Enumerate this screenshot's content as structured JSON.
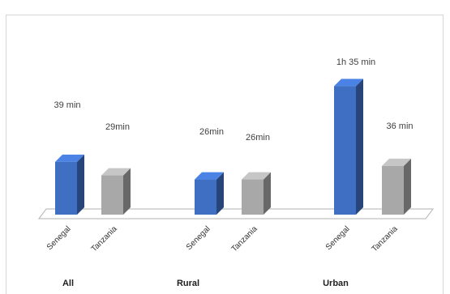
{
  "chart_data": {
    "type": "bar",
    "title": "",
    "xlabel": "",
    "ylabel": "",
    "groups": [
      {
        "name": "All",
        "bars": [
          {
            "category": "Senegal",
            "minutes": 39,
            "label": "39 min",
            "color": "#3f6fc2"
          },
          {
            "category": "Tanzania",
            "minutes": 29,
            "label": "29min",
            "color": "#a8a8a8"
          }
        ]
      },
      {
        "name": "Rural",
        "bars": [
          {
            "category": "Senegal",
            "minutes": 26,
            "label": "26min",
            "color": "#3f6fc2"
          },
          {
            "category": "Tanzania",
            "minutes": 26,
            "label": "26min",
            "color": "#a8a8a8"
          }
        ]
      },
      {
        "name": "Urban",
        "bars": [
          {
            "category": "Senegal",
            "minutes": 95,
            "label": "1h 35 min",
            "color": "#3f6fc2"
          },
          {
            "category": "Tanzania",
            "minutes": 36,
            "label": "36 min",
            "color": "#a8a8a8"
          }
        ]
      }
    ],
    "grid": false,
    "legend": "none",
    "style": "3d-column"
  }
}
